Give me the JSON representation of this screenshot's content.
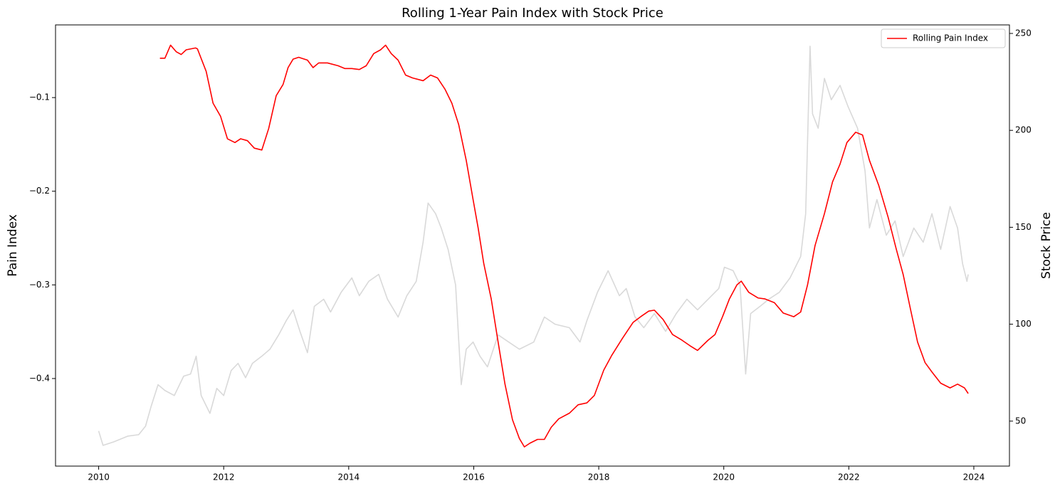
{
  "chart_data": {
    "type": "line",
    "title": "Rolling 1-Year Pain Index with Stock Price",
    "ylabel": "Pain Index",
    "y2label": "Stock Price",
    "xlim": [
      2009.31,
      2024.57
    ],
    "xticks": [
      2010,
      2012,
      2014,
      2016,
      2018,
      2020,
      2022,
      2024
    ],
    "ylim": [
      -0.4935,
      -0.0224
    ],
    "yticks": [
      {
        "value": -0.4,
        "label": "−0.4"
      },
      {
        "value": -0.3,
        "label": "−0.3"
      },
      {
        "value": -0.2,
        "label": "−0.2"
      },
      {
        "value": -0.1,
        "label": "−0.1"
      }
    ],
    "y2lim": [
      26.8,
      254.4
    ],
    "y2ticks": [
      50,
      100,
      150,
      200,
      250
    ],
    "legend": "upper right",
    "series": [
      {
        "color": "#d9d9d9",
        "axis": "y2",
        "x": [
          2010.0,
          2010.07,
          2010.24,
          2010.47,
          2010.64,
          2010.75,
          2010.84,
          2010.95,
          2011.06,
          2011.21,
          2011.36,
          2011.47,
          2011.56,
          2011.64,
          2011.78,
          2011.89,
          2012.0,
          2012.12,
          2012.23,
          2012.35,
          2012.46,
          2012.61,
          2012.74,
          2012.88,
          2013.0,
          2013.11,
          2013.22,
          2013.34,
          2013.45,
          2013.6,
          2013.71,
          2013.88,
          2014.05,
          2014.17,
          2014.32,
          2014.48,
          2014.62,
          2014.79,
          2014.93,
          2015.08,
          2015.19,
          2015.27,
          2015.39,
          2015.48,
          2015.59,
          2015.71,
          2015.8,
          2015.88,
          2015.99,
          2016.1,
          2016.22,
          2016.39,
          2016.56,
          2016.73,
          2016.96,
          2017.13,
          2017.3,
          2017.53,
          2017.7,
          2017.81,
          2017.98,
          2018.15,
          2018.33,
          2018.44,
          2018.58,
          2018.72,
          2018.89,
          2019.07,
          2019.24,
          2019.41,
          2019.58,
          2019.75,
          2019.92,
          2020.01,
          2020.15,
          2020.26,
          2020.35,
          2020.43,
          2020.58,
          2020.72,
          2020.89,
          2021.06,
          2021.23,
          2021.31,
          2021.38,
          2021.42,
          2021.51,
          2021.61,
          2021.72,
          2021.86,
          2021.99,
          2022.14,
          2022.26,
          2022.33,
          2022.45,
          2022.6,
          2022.74,
          2022.87,
          2023.04,
          2023.19,
          2023.33,
          2023.47,
          2023.62,
          2023.74,
          2023.82,
          2023.89,
          2023.91
        ],
        "values": [
          44.9,
          37.5,
          39.3,
          42.3,
          43.0,
          47.4,
          57.7,
          68.8,
          65.8,
          63.2,
          73.2,
          74.3,
          83.5,
          63.2,
          54.0,
          66.9,
          63.2,
          76.1,
          79.8,
          72.4,
          79.8,
          83.5,
          87.1,
          94.5,
          101.8,
          107.4,
          96.3,
          85.3,
          109.2,
          112.9,
          106.3,
          116.5,
          123.9,
          114.7,
          122.1,
          125.7,
          112.9,
          103.7,
          114.7,
          122.1,
          142.3,
          162.5,
          157.0,
          149.6,
          138.6,
          120.2,
          68.8,
          87.1,
          90.8,
          83.5,
          78.0,
          94.5,
          90.8,
          87.1,
          90.8,
          103.7,
          100.0,
          98.2,
          90.8,
          101.8,
          116.5,
          127.6,
          114.7,
          118.4,
          103.7,
          98.2,
          105.5,
          96.3,
          105.5,
          112.9,
          107.4,
          112.9,
          118.4,
          129.4,
          127.6,
          120.2,
          74.3,
          105.5,
          109.2,
          112.9,
          116.5,
          123.9,
          134.9,
          157.0,
          243.4,
          208.5,
          201.1,
          226.8,
          215.8,
          223.2,
          212.1,
          201.1,
          179.0,
          149.6,
          164.3,
          145.9,
          153.3,
          134.9,
          149.6,
          142.3,
          157.0,
          138.6,
          160.7,
          149.6,
          131.2,
          122.1,
          125.7
        ]
      },
      {
        "name": "Rolling Pain Index",
        "color": "#ff0000",
        "x": [
          2010.98,
          2011.06,
          2011.15,
          2011.24,
          2011.32,
          2011.4,
          2011.55,
          2011.58,
          2011.72,
          2011.83,
          2011.95,
          2012.06,
          2012.18,
          2012.27,
          2012.38,
          2012.49,
          2012.61,
          2012.72,
          2012.84,
          2012.95,
          2013.03,
          2013.11,
          2013.2,
          2013.34,
          2013.43,
          2013.52,
          2013.66,
          2013.83,
          2013.94,
          2014.05,
          2014.17,
          2014.28,
          2014.4,
          2014.51,
          2014.59,
          2014.68,
          2014.79,
          2014.91,
          2015.02,
          2015.19,
          2015.31,
          2015.42,
          2015.54,
          2015.65,
          2015.76,
          2015.88,
          2015.99,
          2016.07,
          2016.16,
          2016.28,
          2016.39,
          2016.5,
          2016.62,
          2016.73,
          2016.81,
          2016.9,
          2017.02,
          2017.13,
          2017.24,
          2017.36,
          2017.53,
          2017.67,
          2017.81,
          2017.93,
          2018.08,
          2018.21,
          2018.38,
          2018.55,
          2018.67,
          2018.8,
          2018.89,
          2019.03,
          2019.18,
          2019.33,
          2019.46,
          2019.58,
          2019.75,
          2019.86,
          2019.98,
          2020.09,
          2020.21,
          2020.28,
          2020.4,
          2020.55,
          2020.66,
          2020.81,
          2020.95,
          2021.12,
          2021.23,
          2021.34,
          2021.46,
          2021.61,
          2021.74,
          2021.86,
          2021.97,
          2022.11,
          2022.22,
          2022.33,
          2022.48,
          2022.63,
          2022.76,
          2022.87,
          2022.99,
          2023.1,
          2023.22,
          2023.33,
          2023.47,
          2023.62,
          2023.74,
          2023.85,
          2023.91
        ],
        "values": [
          -0.058,
          -0.058,
          -0.044,
          -0.051,
          -0.054,
          -0.049,
          -0.047,
          -0.048,
          -0.072,
          -0.106,
          -0.12,
          -0.144,
          -0.148,
          -0.144,
          -0.146,
          -0.154,
          -0.156,
          -0.133,
          -0.098,
          -0.086,
          -0.068,
          -0.059,
          -0.057,
          -0.06,
          -0.068,
          -0.063,
          -0.063,
          -0.066,
          -0.069,
          -0.069,
          -0.07,
          -0.066,
          -0.053,
          -0.049,
          -0.044,
          -0.053,
          -0.06,
          -0.076,
          -0.079,
          -0.082,
          -0.076,
          -0.079,
          -0.091,
          -0.106,
          -0.129,
          -0.167,
          -0.209,
          -0.239,
          -0.277,
          -0.315,
          -0.361,
          -0.406,
          -0.444,
          -0.464,
          -0.473,
          -0.469,
          -0.465,
          -0.465,
          -0.452,
          -0.443,
          -0.437,
          -0.428,
          -0.426,
          -0.418,
          -0.391,
          -0.375,
          -0.357,
          -0.34,
          -0.334,
          -0.328,
          -0.327,
          -0.337,
          -0.353,
          -0.359,
          -0.365,
          -0.37,
          -0.359,
          -0.353,
          -0.334,
          -0.315,
          -0.3,
          -0.296,
          -0.308,
          -0.314,
          -0.315,
          -0.319,
          -0.33,
          -0.334,
          -0.329,
          -0.3,
          -0.258,
          -0.224,
          -0.19,
          -0.171,
          -0.148,
          -0.137,
          -0.14,
          -0.167,
          -0.194,
          -0.228,
          -0.262,
          -0.289,
          -0.327,
          -0.361,
          -0.383,
          -0.393,
          -0.405,
          -0.41,
          -0.406,
          -0.41,
          -0.416
        ]
      }
    ]
  }
}
